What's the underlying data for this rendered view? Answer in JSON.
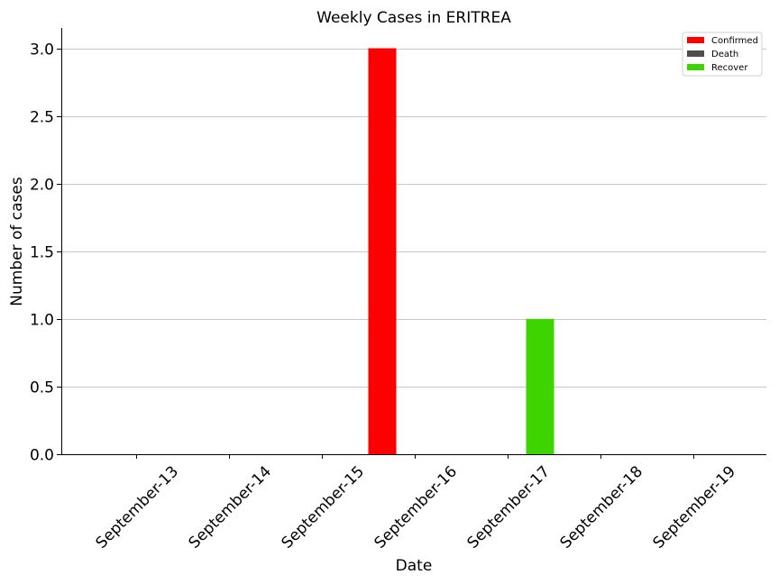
{
  "chart_data": {
    "type": "bar",
    "title": "Weekly Cases in ERITREA",
    "xlabel": "Date",
    "ylabel": "Number of cases",
    "categories": [
      "September-13",
      "September-14",
      "September-15",
      "September-16",
      "September-17",
      "September-18",
      "September-19"
    ],
    "series": [
      {
        "name": "Confirmed",
        "color": "#ff0000",
        "values": [
          0,
          0,
          0,
          3,
          0,
          0,
          0
        ]
      },
      {
        "name": "Death",
        "color": "#4d4d4d",
        "values": [
          0,
          0,
          0,
          0,
          0,
          0,
          0
        ]
      },
      {
        "name": "Recover",
        "color": "#3ed400",
        "values": [
          0,
          0,
          0,
          0,
          1,
          0,
          0
        ]
      }
    ],
    "ylim": [
      0,
      3.15
    ],
    "yticks": [
      "0.0",
      "0.5",
      "1.0",
      "1.5",
      "2.0",
      "2.5",
      "3.0"
    ],
    "grid": "horizontal",
    "legend_position": "top-right"
  }
}
